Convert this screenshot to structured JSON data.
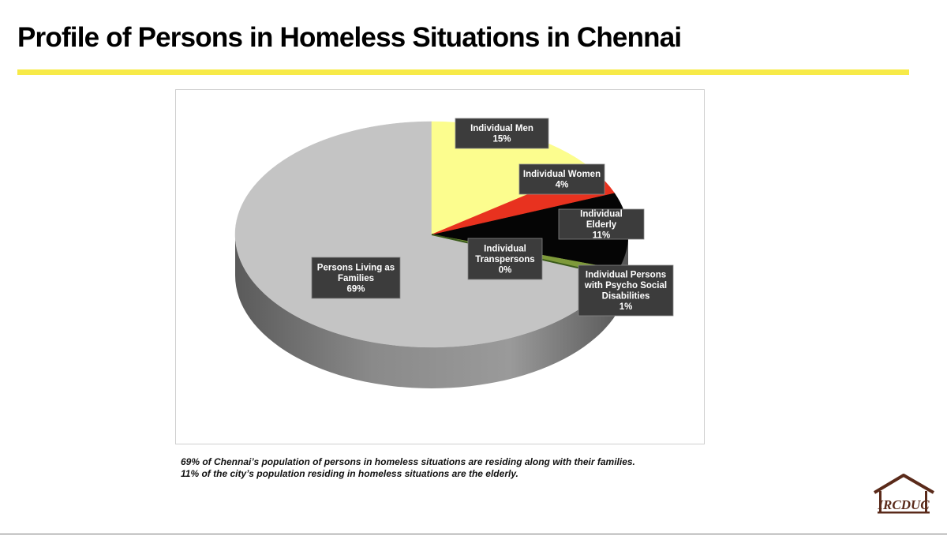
{
  "slide": {
    "title": "Profile of Persons in Homeless Situations in Chennai",
    "accent_color": "#f7ea48"
  },
  "chart_data": {
    "type": "pie",
    "style": "3d-tilted",
    "title": "",
    "slices": [
      {
        "label": "Individual Men",
        "display": "15%",
        "value": 15,
        "color": "#fcfd8e"
      },
      {
        "label": "Individual Women",
        "display": "4%",
        "value": 4,
        "color": "#e8321f"
      },
      {
        "label": "Individual Elderly",
        "display": "11%",
        "value": 11,
        "color": "#050505"
      },
      {
        "label": "Individual Persons with Psycho Social Disabilities",
        "display": "1%",
        "value": 1,
        "color": "#7e9a3a"
      },
      {
        "label": "Individual Transpersons",
        "display": "0%",
        "value": 0,
        "color": "#3a5a1a"
      },
      {
        "label": "Persons Living as Families",
        "display": "69%",
        "value": 69,
        "color": "#c4c4c4"
      }
    ]
  },
  "caption": {
    "line1": "69% of Chennai’s population of persons in homeless situations are residing along with their families.",
    "line2": "11% of the city’s population residing in homeless situations are the elderly."
  },
  "logo": {
    "text": "IRCDUC",
    "color": "#5a2a1a"
  }
}
